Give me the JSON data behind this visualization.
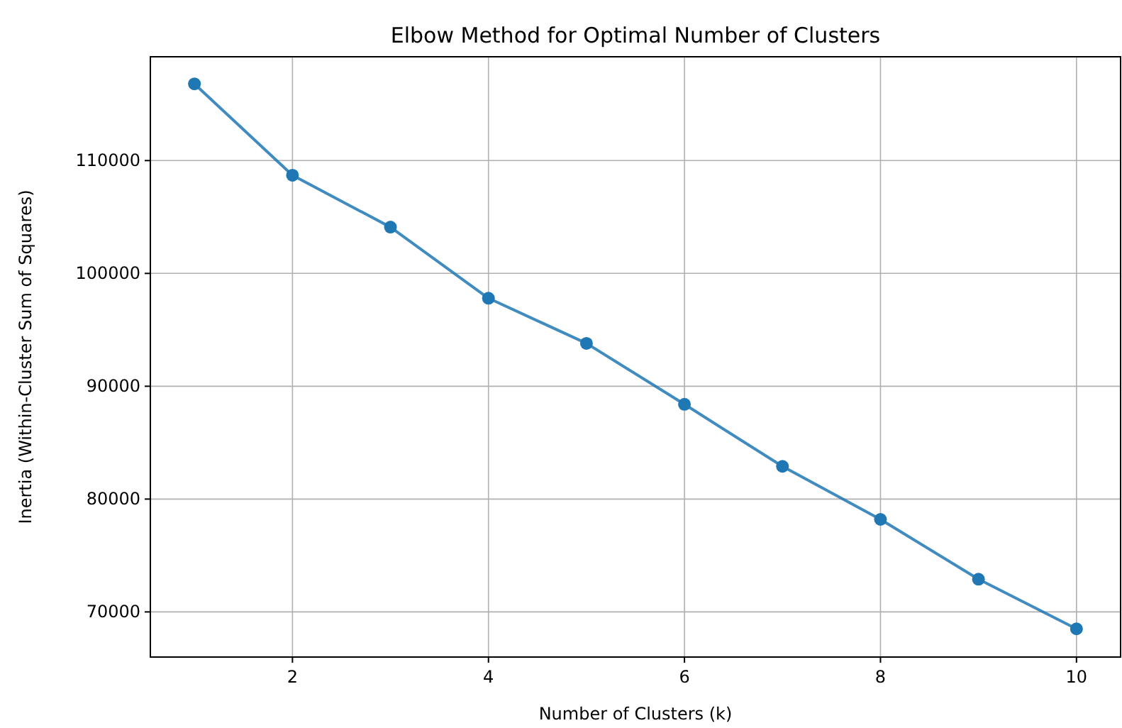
{
  "chart_data": {
    "type": "line",
    "title": "Elbow Method for Optimal Number of Clusters",
    "xlabel": "Number of Clusters (k)",
    "ylabel": "Inertia (Within-Cluster Sum of Squares)",
    "x": [
      1,
      2,
      3,
      4,
      5,
      6,
      7,
      8,
      9,
      10
    ],
    "series": [
      {
        "color": "#1f77b4",
        "values": [
          116800,
          108700,
          104100,
          97800,
          93800,
          88400,
          82900,
          78200,
          72900,
          68500
        ]
      }
    ],
    "xlim": [
      0.55,
      10.45
    ],
    "xticks": [
      2,
      4,
      6,
      8,
      10
    ],
    "ylim": [
      66000,
      119200
    ],
    "yticks": [
      70000,
      80000,
      90000,
      100000,
      110000
    ],
    "grid": true,
    "marker": "circle",
    "line_style": "solid"
  }
}
